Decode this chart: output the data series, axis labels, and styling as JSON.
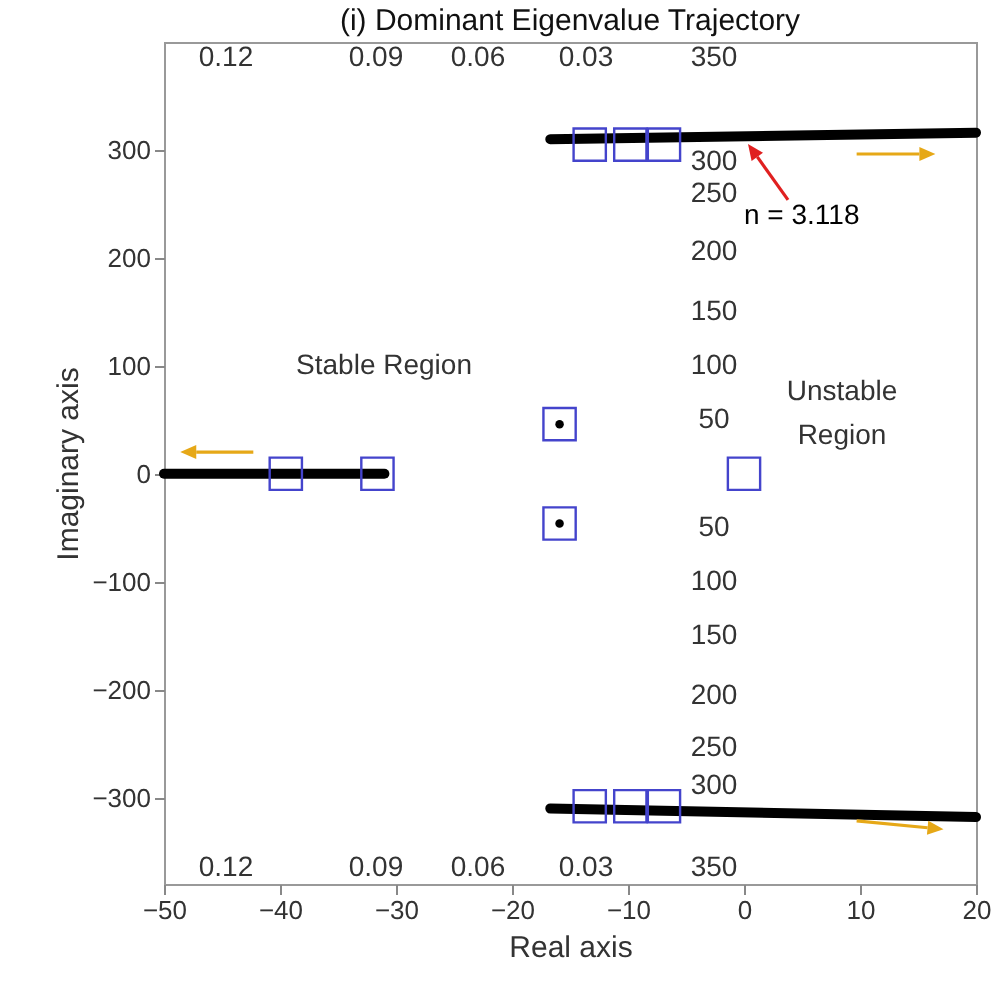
{
  "chart_data": {
    "type": "line",
    "title": "(i) Dominant Eigenvalue Trajectory",
    "xlabel": "Real axis",
    "ylabel": "Imaginary axis",
    "xlim": [
      -50,
      20
    ],
    "xticks": [
      -50,
      -40,
      -30,
      -20,
      -10,
      0,
      10,
      20
    ],
    "ylim": [
      -380,
      400
    ],
    "yticks": [
      -300,
      -200,
      -100,
      0,
      100,
      200,
      300
    ],
    "series": [
      {
        "color": "#000000",
        "x": [
          -16.7,
          20
        ],
        "values": [
          310,
          316
        ]
      },
      {
        "color": "#000000",
        "x": [
          -16.7,
          20
        ],
        "values": [
          -310,
          -318
        ]
      },
      {
        "color": "#000000",
        "x": [
          -50,
          -31
        ],
        "values": [
          0,
          0
        ]
      },
      {
        "type": "scatter",
        "marker": "square",
        "color": "#4444cc",
        "x": [
          -13.3,
          -9.8,
          -6.9,
          -13.3,
          -9.8,
          -6.9,
          -39.5,
          -31.6,
          -15.9,
          -15.9,
          0
        ],
        "values": [
          305,
          305,
          305,
          -308,
          -308,
          -308,
          0,
          0,
          46,
          -46,
          0
        ]
      },
      {
        "type": "scatter",
        "marker": "circle",
        "color": "#000000",
        "x": [
          -15.9,
          -15.9
        ],
        "values": [
          46,
          -46
        ]
      }
    ],
    "annotations": [
      "0.12",
      "0.09",
      "0.06",
      "0.03",
      "0.12",
      "0.09",
      "0.06",
      "0.03",
      "350",
      "300",
      "250",
      "200",
      "150",
      "100",
      "50",
      "50",
      "100",
      "150",
      "200",
      "250",
      "300",
      "350",
      "Stable Region",
      "Unstable\nRegion",
      {
        "text": "n = 3.118",
        "x": 0,
        "y": 313
      }
    ]
  }
}
